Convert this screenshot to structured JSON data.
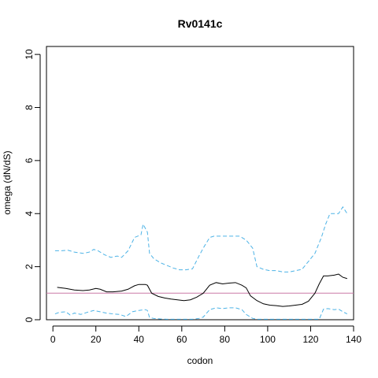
{
  "chart_data": {
    "type": "line",
    "title": "Rv0141c",
    "xlabel": "codon",
    "ylabel": "omega (dN/dS)",
    "xlim": [
      -3,
      140
    ],
    "ylim": [
      0,
      10.3
    ],
    "xticks": [
      0,
      20,
      40,
      60,
      80,
      100,
      120,
      140
    ],
    "yticks": [
      0,
      2,
      4,
      6,
      8,
      10
    ],
    "grid": false,
    "reference_line": {
      "y": 1,
      "color": "#CC79A7"
    },
    "colors": {
      "mean": "#000000",
      "bounds": "#4DB3E6"
    },
    "series": [
      {
        "style": "solid",
        "x": [
          2,
          6,
          10,
          14,
          17,
          20,
          22,
          25,
          28,
          32,
          35,
          38,
          40,
          43,
          44,
          46,
          49,
          52,
          55,
          58,
          61,
          64,
          67,
          70,
          73,
          76,
          79,
          82,
          85,
          88,
          90,
          92,
          95,
          98,
          101,
          104,
          107,
          110,
          113,
          116,
          119,
          122,
          124,
          126,
          128,
          131,
          133,
          135,
          137
        ],
        "y": [
          1.22,
          1.18,
          1.12,
          1.1,
          1.12,
          1.18,
          1.15,
          1.05,
          1.05,
          1.08,
          1.15,
          1.28,
          1.33,
          1.33,
          1.3,
          1.0,
          0.88,
          0.82,
          0.78,
          0.75,
          0.72,
          0.75,
          0.85,
          1.0,
          1.3,
          1.4,
          1.35,
          1.38,
          1.4,
          1.3,
          1.2,
          0.9,
          0.72,
          0.6,
          0.55,
          0.53,
          0.5,
          0.52,
          0.55,
          0.58,
          0.7,
          1.0,
          1.35,
          1.65,
          1.65,
          1.68,
          1.72,
          1.6,
          1.55
        ]
      },
      {
        "style": "dashed",
        "x": [
          1,
          4,
          7,
          10,
          14,
          17,
          19,
          21,
          24,
          27,
          30,
          32,
          35,
          38,
          41,
          42,
          44,
          45,
          47,
          50,
          53,
          56,
          59,
          62,
          65,
          68,
          70,
          73,
          75,
          78,
          81,
          84,
          87,
          90,
          93,
          95,
          98,
          101,
          104,
          107,
          110,
          113,
          116,
          119,
          122,
          125,
          127,
          129,
          131,
          133,
          135,
          137
        ],
        "y": [
          2.6,
          2.6,
          2.62,
          2.55,
          2.5,
          2.55,
          2.65,
          2.6,
          2.45,
          2.35,
          2.4,
          2.35,
          2.6,
          3.1,
          3.2,
          3.6,
          3.3,
          2.5,
          2.3,
          2.15,
          2.05,
          1.95,
          1.88,
          1.88,
          1.92,
          2.4,
          2.7,
          3.1,
          3.15,
          3.15,
          3.15,
          3.15,
          3.15,
          3.0,
          2.7,
          2.0,
          1.9,
          1.85,
          1.85,
          1.8,
          1.8,
          1.85,
          1.9,
          2.2,
          2.5,
          3.1,
          3.6,
          4.0,
          4.0,
          4.0,
          4.25,
          4.0
        ]
      },
      {
        "style": "dashed",
        "x": [
          1,
          3,
          6,
          8,
          10,
          13,
          16,
          19,
          22,
          25,
          28,
          31,
          34,
          37,
          40,
          43,
          44,
          45,
          47,
          50,
          53,
          56,
          59,
          62,
          65,
          68,
          70,
          73,
          76,
          79,
          82,
          85,
          88,
          90,
          93,
          95,
          98,
          101,
          104,
          107,
          110,
          113,
          116,
          119,
          122,
          124,
          126,
          128,
          131,
          133,
          135,
          137
        ],
        "y": [
          0.22,
          0.28,
          0.3,
          0.18,
          0.25,
          0.2,
          0.28,
          0.35,
          0.3,
          0.25,
          0.22,
          0.2,
          0.12,
          0.3,
          0.35,
          0.38,
          0.35,
          0.08,
          0.05,
          0.03,
          0.02,
          0.02,
          0.02,
          0.02,
          0.02,
          0.05,
          0.1,
          0.38,
          0.45,
          0.42,
          0.45,
          0.45,
          0.38,
          0.2,
          0.05,
          0.02,
          0.02,
          0.02,
          0.02,
          0.02,
          0.02,
          0.02,
          0.02,
          0.02,
          0.02,
          0.02,
          0.4,
          0.42,
          0.38,
          0.4,
          0.3,
          0.22
        ]
      }
    ]
  }
}
